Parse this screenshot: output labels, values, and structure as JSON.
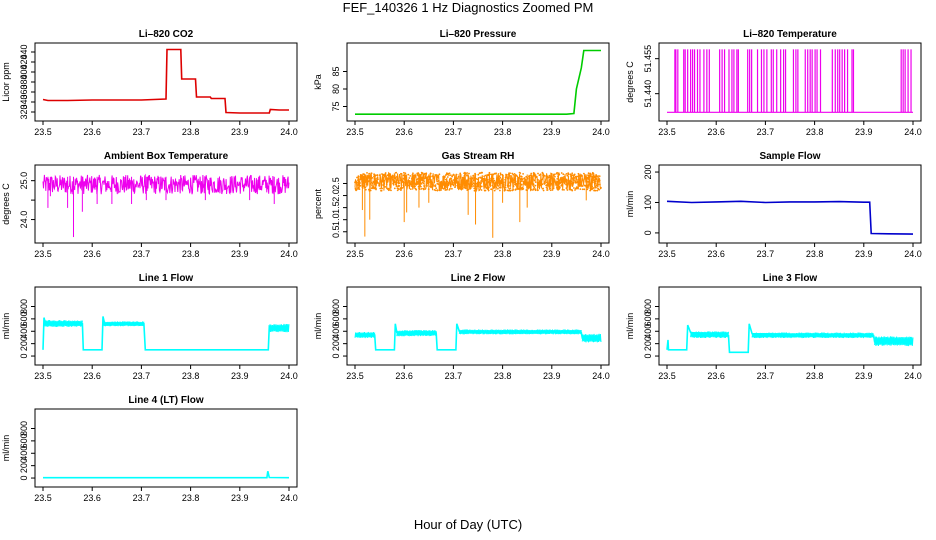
{
  "figure": {
    "title": "FEF_140326  1 Hz Diagnostics Zoomed PM",
    "xlabel": "Hour of Day (UTC)"
  },
  "chart_data": [
    {
      "type": "line",
      "title": "Li–820 CO2",
      "ylabel": "Licor ppm",
      "color": "#dd0000",
      "xlim": [
        23.5,
        24.0
      ],
      "ylim": [
        310,
        450
      ],
      "xticks": [
        23.5,
        23.6,
        23.7,
        23.8,
        23.9,
        24.0
      ],
      "yticks": [
        320,
        340,
        360,
        380,
        400,
        420,
        440
      ],
      "series": [
        {
          "x": [
            23.5,
            23.51,
            23.55,
            23.6,
            23.65,
            23.7,
            23.75,
            23.752,
            23.78,
            23.782,
            23.81,
            23.812,
            23.84,
            23.842,
            23.87,
            23.872,
            23.9,
            23.92,
            23.94,
            23.96,
            23.962,
            23.98,
            24.0
          ],
          "y": [
            345,
            343,
            343,
            344,
            344,
            344,
            346,
            445,
            445,
            386,
            386,
            350,
            350,
            347,
            347,
            319,
            318,
            318,
            318,
            318,
            325,
            324,
            324
          ]
        }
      ]
    },
    {
      "type": "line",
      "title": "Li–820 Pressure",
      "ylabel": "kPa",
      "color": "#00cc00",
      "xlim": [
        23.5,
        24.0
      ],
      "ylim": [
        72,
        92
      ],
      "xticks": [
        23.5,
        23.6,
        23.7,
        23.8,
        23.9,
        24.0
      ],
      "yticks": [
        75,
        80,
        85
      ],
      "series": [
        {
          "x": [
            23.5,
            23.6,
            23.7,
            23.8,
            23.9,
            23.93,
            23.945,
            23.95,
            23.96,
            23.965,
            24.0
          ],
          "y": [
            72.8,
            72.8,
            72.8,
            72.8,
            72.8,
            72.8,
            73,
            80,
            86,
            91,
            91
          ]
        }
      ]
    },
    {
      "type": "line",
      "title": "Li–820 Temperature",
      "ylabel": "degrees C",
      "color": "#ee00ee",
      "xlim": [
        23.5,
        24.0
      ],
      "ylim": [
        51.43,
        51.46
      ],
      "xticks": [
        23.5,
        23.6,
        23.7,
        23.8,
        23.9,
        24.0
      ],
      "yticks": [
        51.44,
        51.455
      ],
      "ytick_labels": [
        "51.440",
        "51.455"
      ],
      "baseline": 51.432,
      "top": 51.459,
      "spikes": [
        23.516,
        23.518,
        23.522,
        23.534,
        23.537,
        23.542,
        23.548,
        23.552,
        23.556,
        23.562,
        23.567,
        23.575,
        23.581,
        23.586,
        23.607,
        23.612,
        23.617,
        23.626,
        23.632,
        23.636,
        23.642,
        23.645,
        23.664,
        23.668,
        23.672,
        23.684,
        23.692,
        23.697,
        23.703,
        23.712,
        23.716,
        23.723,
        23.731,
        23.737,
        23.741,
        23.757,
        23.762,
        23.766,
        23.781,
        23.786,
        23.791,
        23.795,
        23.801,
        23.805,
        23.812,
        23.836,
        23.842,
        23.847,
        23.851,
        23.856,
        23.861,
        23.867,
        23.876,
        23.879,
        23.976,
        23.98,
        23.984,
        23.99,
        23.996
      ]
    },
    {
      "type": "line",
      "title": "Ambient Box Temperature",
      "ylabel": "degrees C",
      "color": "#ee00ee",
      "xlim": [
        23.5,
        24.0
      ],
      "ylim": [
        23.5,
        25.3
      ],
      "xticks": [
        23.5,
        23.6,
        23.7,
        23.8,
        23.9,
        24.0
      ],
      "yticks": [
        24.0,
        24.5,
        25.0
      ],
      "ytick_labels": [
        "24.0",
        "",
        "25.0"
      ],
      "band": [
        24.65,
        25.15
      ],
      "center": 24.9,
      "dips": [
        [
          23.51,
          24.3
        ],
        [
          23.515,
          24.6
        ],
        [
          23.55,
          24.3
        ],
        [
          23.562,
          23.55
        ],
        [
          23.58,
          24.2
        ],
        [
          23.61,
          24.4
        ],
        [
          23.64,
          24.4
        ],
        [
          23.68,
          24.4
        ],
        [
          23.71,
          24.5
        ],
        [
          23.75,
          24.5
        ],
        [
          23.83,
          24.5
        ],
        [
          23.92,
          24.5
        ],
        [
          23.97,
          24.4
        ]
      ]
    },
    {
      "type": "line",
      "title": "Gas Stream RH",
      "ylabel": "percent",
      "color": "#ff8c00",
      "xlim": [
        23.5,
        24.0
      ],
      "ylim": [
        0.2,
        3.1
      ],
      "xticks": [
        23.5,
        23.6,
        23.7,
        23.8,
        23.9,
        24.0
      ],
      "yticks": [
        0.5,
        1.0,
        1.5,
        2.0,
        2.5
      ],
      "yticks_labels": [
        "0.5",
        "1.0",
        "1.5",
        "2.0",
        "2.5"
      ],
      "band": [
        2.2,
        2.95
      ],
      "dips": [
        [
          23.52,
          0.3
        ],
        [
          23.515,
          1.4
        ],
        [
          23.53,
          1.0
        ],
        [
          23.6,
          0.9
        ],
        [
          23.605,
          1.3
        ],
        [
          23.63,
          1.5
        ],
        [
          23.65,
          1.7
        ],
        [
          23.73,
          1.2
        ],
        [
          23.745,
          0.8
        ],
        [
          23.78,
          0.25
        ],
        [
          23.8,
          1.7
        ],
        [
          23.835,
          0.9
        ],
        [
          23.85,
          1.5
        ],
        [
          23.97,
          1.8
        ]
      ]
    },
    {
      "type": "line",
      "title": "Sample Flow",
      "ylabel": "ml/min",
      "color": "#0000cc",
      "xlim": [
        23.5,
        24.0
      ],
      "ylim": [
        -20,
        210
      ],
      "xticks": [
        23.5,
        23.6,
        23.7,
        23.8,
        23.9,
        24.0
      ],
      "yticks": [
        0,
        100,
        200
      ],
      "series": [
        {
          "x": [
            23.5,
            23.55,
            23.6,
            23.65,
            23.7,
            23.75,
            23.8,
            23.85,
            23.9,
            23.912,
            23.915,
            23.95,
            24.0
          ],
          "y": [
            104,
            100,
            102,
            104,
            100,
            102,
            102,
            103,
            101,
            101,
            -2,
            -3,
            -4
          ]
        }
      ]
    },
    {
      "type": "line",
      "title": "Line 1 Flow",
      "ylabel": "ml/min",
      "color": "#00ffff",
      "xlim": [
        23.5,
        24.0
      ],
      "ylim": [
        -80,
        1050
      ],
      "xticks": [
        23.5,
        23.6,
        23.7,
        23.8,
        23.9,
        24.0
      ],
      "yticks": [
        0,
        200,
        400,
        600,
        800
      ],
      "series": [
        {
          "x": [
            23.5,
            23.502,
            23.505,
            23.58,
            23.582,
            23.62,
            23.622,
            23.625,
            23.705,
            23.708,
            23.958,
            23.96,
            23.965,
            24.0
          ],
          "y": [
            100,
            620,
            520,
            520,
            100,
            100,
            640,
            530,
            520,
            100,
            100,
            480,
            460,
            460
          ]
        }
      ],
      "noise_segments": [
        [
          23.502,
          23.58,
          470,
          580
        ],
        [
          23.622,
          23.705,
          480,
          560
        ],
        [
          23.96,
          24.0,
          380,
          520
        ]
      ]
    },
    {
      "type": "line",
      "title": "Line 2 Flow",
      "ylabel": "ml/min",
      "color": "#00ffff",
      "xlim": [
        23.5,
        24.0
      ],
      "ylim": [
        -80,
        1050
      ],
      "xticks": [
        23.5,
        23.6,
        23.7,
        23.8,
        23.9,
        24.0
      ],
      "yticks": [
        0,
        200,
        400,
        600,
        800
      ],
      "series": [
        {
          "x": [
            23.5,
            23.54,
            23.542,
            23.58,
            23.582,
            23.585,
            23.665,
            23.667,
            23.705,
            23.707,
            23.712,
            23.96,
            23.962,
            24.0
          ],
          "y": [
            340,
            340,
            100,
            100,
            520,
            380,
            370,
            100,
            100,
            520,
            400,
            380,
            290,
            290
          ]
        }
      ],
      "noise_segments": [
        [
          23.5,
          23.54,
          290,
          390
        ],
        [
          23.585,
          23.665,
          320,
          420
        ],
        [
          23.712,
          23.96,
          350,
          430
        ],
        [
          23.962,
          24.0,
          220,
          360
        ]
      ]
    },
    {
      "type": "line",
      "title": "Line 3 Flow",
      "ylabel": "ml/min",
      "color": "#00ffff",
      "xlim": [
        23.5,
        24.0
      ],
      "ylim": [
        -80,
        1050
      ],
      "xticks": [
        23.5,
        23.6,
        23.7,
        23.8,
        23.9,
        24.0
      ],
      "yticks": [
        0,
        200,
        400,
        600,
        800
      ],
      "series": [
        {
          "x": [
            23.5,
            23.502,
            23.503,
            23.54,
            23.542,
            23.548,
            23.625,
            23.627,
            23.665,
            23.667,
            23.673,
            23.92,
            23.922,
            24.0
          ],
          "y": [
            100,
            260,
            100,
            100,
            500,
            380,
            330,
            60,
            60,
            520,
            360,
            330,
            230,
            230
          ]
        }
      ],
      "noise_segments": [
        [
          23.548,
          23.625,
          290,
          400
        ],
        [
          23.673,
          23.92,
          290,
          380
        ],
        [
          23.922,
          24.0,
          160,
          320
        ]
      ]
    },
    {
      "type": "line",
      "title": "Line 4 (LT) Flow",
      "ylabel": "ml/min",
      "color": "#00ffff",
      "xlim": [
        23.5,
        24.0
      ],
      "ylim": [
        -80,
        1050
      ],
      "xticks": [
        23.5,
        23.6,
        23.7,
        23.8,
        23.9,
        24.0
      ],
      "yticks": [
        0,
        200,
        400,
        600,
        800
      ],
      "series": [
        {
          "x": [
            23.5,
            23.95,
            23.955,
            23.957,
            23.96,
            24.0
          ],
          "y": [
            5,
            5,
            5,
            110,
            8,
            5
          ]
        }
      ]
    }
  ]
}
